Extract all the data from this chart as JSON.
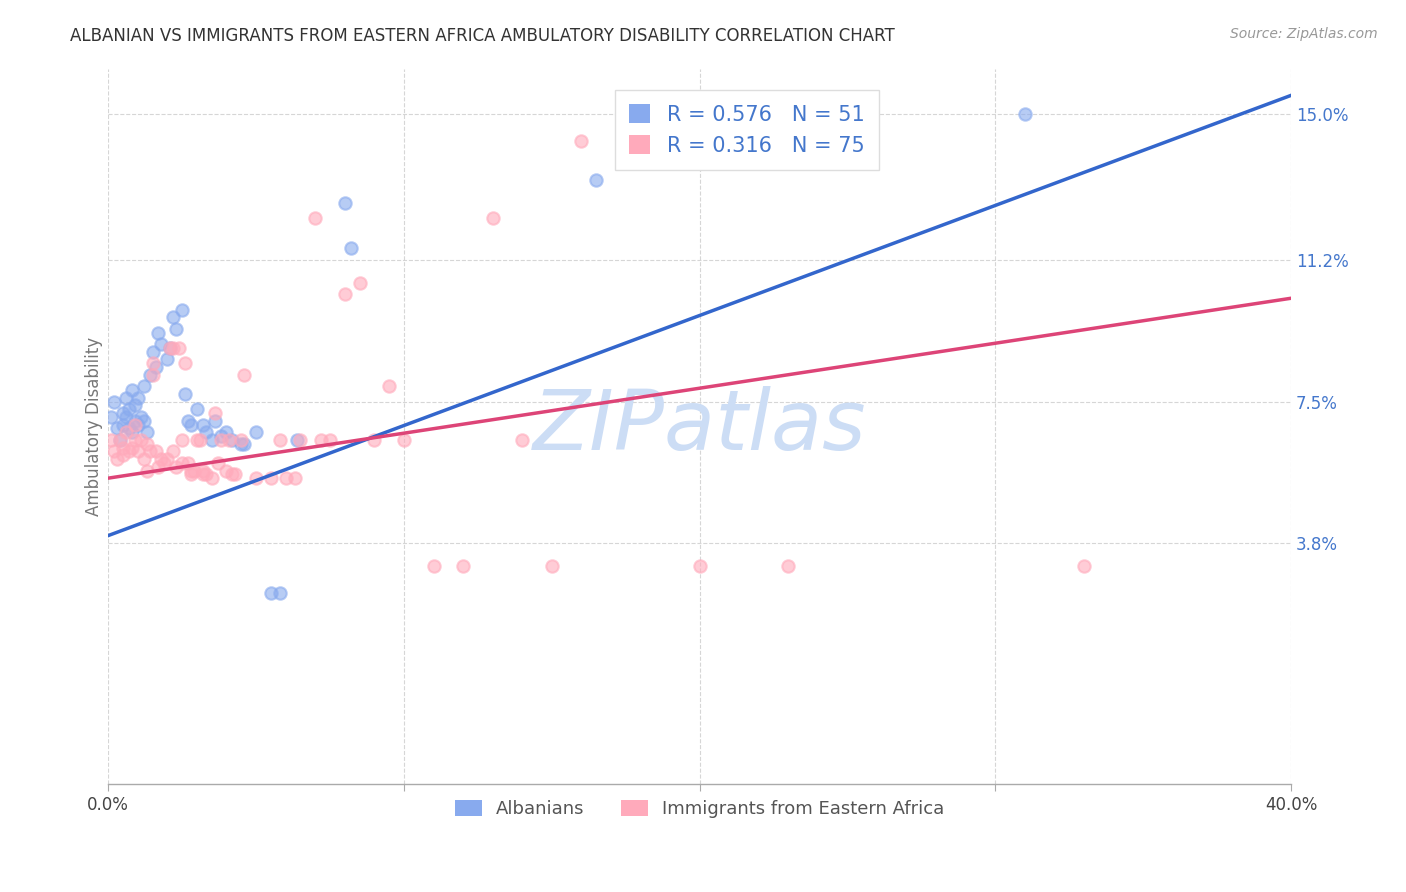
{
  "title": "ALBANIAN VS IMMIGRANTS FROM EASTERN AFRICA AMBULATORY DISABILITY CORRELATION CHART",
  "source": "Source: ZipAtlas.com",
  "ylabel": "Ambulatory Disability",
  "ytick_labels": [
    "15.0%",
    "11.2%",
    "7.5%",
    "3.8%"
  ],
  "ytick_values": [
    0.15,
    0.112,
    0.075,
    0.038
  ],
  "x_min": 0.0,
  "x_max": 0.4,
  "y_min": -0.025,
  "y_max": 0.162,
  "legend_entries": [
    {
      "label": "R = 0.576   N = 51"
    },
    {
      "label": "R = 0.316   N = 75"
    }
  ],
  "legend_labels_bottom": [
    "Albanians",
    "Immigrants from Eastern Africa"
  ],
  "watermark": "ZIPatlas",
  "blue_scatter": [
    [
      0.001,
      0.071
    ],
    [
      0.002,
      0.075
    ],
    [
      0.003,
      0.068
    ],
    [
      0.004,
      0.065
    ],
    [
      0.005,
      0.072
    ],
    [
      0.005,
      0.069
    ],
    [
      0.006,
      0.071
    ],
    [
      0.006,
      0.076
    ],
    [
      0.007,
      0.068
    ],
    [
      0.007,
      0.073
    ],
    [
      0.008,
      0.067
    ],
    [
      0.008,
      0.078
    ],
    [
      0.009,
      0.07
    ],
    [
      0.009,
      0.074
    ],
    [
      0.01,
      0.069
    ],
    [
      0.01,
      0.076
    ],
    [
      0.011,
      0.071
    ],
    [
      0.012,
      0.07
    ],
    [
      0.012,
      0.079
    ],
    [
      0.013,
      0.067
    ],
    [
      0.014,
      0.082
    ],
    [
      0.015,
      0.088
    ],
    [
      0.016,
      0.084
    ],
    [
      0.017,
      0.093
    ],
    [
      0.018,
      0.09
    ],
    [
      0.02,
      0.086
    ],
    [
      0.021,
      0.089
    ],
    [
      0.022,
      0.097
    ],
    [
      0.023,
      0.094
    ],
    [
      0.025,
      0.099
    ],
    [
      0.026,
      0.077
    ],
    [
      0.027,
      0.07
    ],
    [
      0.028,
      0.069
    ],
    [
      0.03,
      0.073
    ],
    [
      0.032,
      0.069
    ],
    [
      0.033,
      0.067
    ],
    [
      0.035,
      0.065
    ],
    [
      0.036,
      0.07
    ],
    [
      0.038,
      0.066
    ],
    [
      0.04,
      0.067
    ],
    [
      0.042,
      0.065
    ],
    [
      0.045,
      0.064
    ],
    [
      0.046,
      0.064
    ],
    [
      0.05,
      0.067
    ],
    [
      0.055,
      0.025
    ],
    [
      0.058,
      0.025
    ],
    [
      0.064,
      0.065
    ],
    [
      0.08,
      0.127
    ],
    [
      0.082,
      0.115
    ],
    [
      0.165,
      0.133
    ],
    [
      0.31,
      0.15
    ]
  ],
  "pink_scatter": [
    [
      0.001,
      0.065
    ],
    [
      0.002,
      0.062
    ],
    [
      0.003,
      0.06
    ],
    [
      0.004,
      0.065
    ],
    [
      0.005,
      0.063
    ],
    [
      0.005,
      0.061
    ],
    [
      0.006,
      0.067
    ],
    [
      0.007,
      0.062
    ],
    [
      0.008,
      0.063
    ],
    [
      0.009,
      0.065
    ],
    [
      0.009,
      0.069
    ],
    [
      0.01,
      0.062
    ],
    [
      0.011,
      0.065
    ],
    [
      0.012,
      0.06
    ],
    [
      0.013,
      0.064
    ],
    [
      0.013,
      0.057
    ],
    [
      0.014,
      0.062
    ],
    [
      0.015,
      0.085
    ],
    [
      0.015,
      0.082
    ],
    [
      0.016,
      0.062
    ],
    [
      0.017,
      0.058
    ],
    [
      0.018,
      0.06
    ],
    [
      0.019,
      0.059
    ],
    [
      0.02,
      0.06
    ],
    [
      0.021,
      0.089
    ],
    [
      0.022,
      0.089
    ],
    [
      0.022,
      0.062
    ],
    [
      0.023,
      0.058
    ],
    [
      0.024,
      0.089
    ],
    [
      0.025,
      0.065
    ],
    [
      0.025,
      0.059
    ],
    [
      0.026,
      0.085
    ],
    [
      0.027,
      0.059
    ],
    [
      0.028,
      0.057
    ],
    [
      0.028,
      0.056
    ],
    [
      0.029,
      0.057
    ],
    [
      0.03,
      0.065
    ],
    [
      0.031,
      0.065
    ],
    [
      0.032,
      0.057
    ],
    [
      0.032,
      0.056
    ],
    [
      0.033,
      0.056
    ],
    [
      0.035,
      0.055
    ],
    [
      0.036,
      0.072
    ],
    [
      0.037,
      0.059
    ],
    [
      0.038,
      0.065
    ],
    [
      0.04,
      0.057
    ],
    [
      0.041,
      0.065
    ],
    [
      0.042,
      0.056
    ],
    [
      0.043,
      0.056
    ],
    [
      0.045,
      0.065
    ],
    [
      0.046,
      0.082
    ],
    [
      0.05,
      0.055
    ],
    [
      0.055,
      0.055
    ],
    [
      0.058,
      0.065
    ],
    [
      0.06,
      0.055
    ],
    [
      0.063,
      0.055
    ],
    [
      0.065,
      0.065
    ],
    [
      0.07,
      0.123
    ],
    [
      0.072,
      0.065
    ],
    [
      0.075,
      0.065
    ],
    [
      0.08,
      0.103
    ],
    [
      0.085,
      0.106
    ],
    [
      0.09,
      0.065
    ],
    [
      0.095,
      0.079
    ],
    [
      0.1,
      0.065
    ],
    [
      0.11,
      0.032
    ],
    [
      0.12,
      0.032
    ],
    [
      0.13,
      0.123
    ],
    [
      0.14,
      0.065
    ],
    [
      0.15,
      0.032
    ],
    [
      0.16,
      0.143
    ],
    [
      0.18,
      0.143
    ],
    [
      0.2,
      0.032
    ],
    [
      0.23,
      0.032
    ],
    [
      0.33,
      0.032
    ]
  ],
  "blue_line_x": [
    0.0,
    0.4
  ],
  "blue_line_y": [
    0.04,
    0.155
  ],
  "pink_line_x": [
    0.0,
    0.4
  ],
  "pink_line_y": [
    0.055,
    0.102
  ],
  "blue_dot_color": "#88aaee",
  "pink_dot_color": "#ffaabb",
  "blue_line_color": "#3366cc",
  "pink_line_color": "#dd4477",
  "legend_color": "#4477cc",
  "grid_color": "#cccccc",
  "watermark_color": "#ccddf5",
  "bg_color": "#ffffff",
  "axis_color": "#aaaaaa",
  "ytick_color": "#4477cc",
  "xtick_color": "#444444"
}
